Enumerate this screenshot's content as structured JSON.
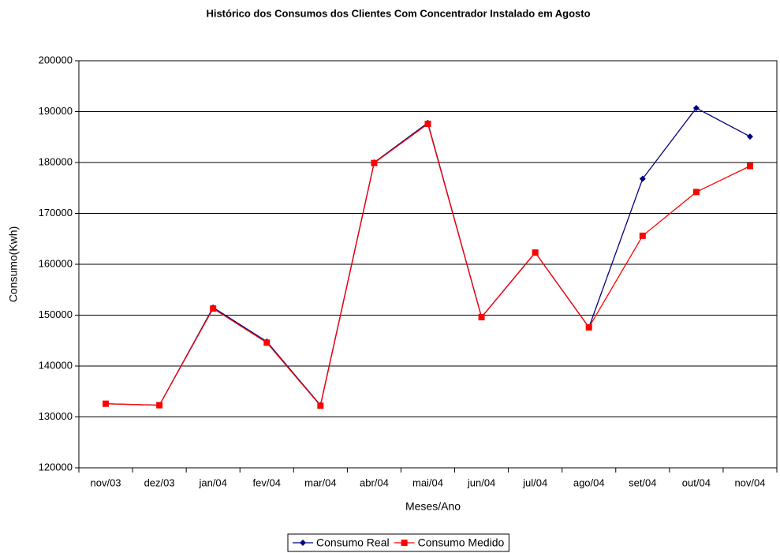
{
  "chart_data": {
    "type": "line",
    "title": "Histórico dos Consumos dos Clientes Com Concentrador Instalado em Agosto",
    "x_label": "Meses/Ano",
    "y_label": "Consumo(Kwh)",
    "categories": [
      "nov/03",
      "dez/03",
      "jan/04",
      "fev/04",
      "mar/04",
      "abr/04",
      "mai/04",
      "jun/04",
      "jul/04",
      "ago/04",
      "set/04",
      "out/04",
      "nov/04"
    ],
    "series": [
      {
        "name": "Consumo Real",
        "color": "#000080",
        "marker": "diamond",
        "values": [
          132600,
          132300,
          151500,
          144800,
          132300,
          180000,
          187800,
          149600,
          162300,
          147600,
          176800,
          190700,
          185100
        ]
      },
      {
        "name": "Consumo Medido",
        "color": "#ff0000",
        "marker": "square",
        "values": [
          132600,
          132300,
          151300,
          144600,
          132200,
          179900,
          187600,
          149600,
          162300,
          147600,
          165600,
          174200,
          179300
        ]
      }
    ],
    "ylim": [
      120000,
      200000
    ],
    "yticks": [
      120000,
      130000,
      140000,
      150000,
      160000,
      170000,
      180000,
      190000,
      200000
    ],
    "grid": true,
    "legend": "bottom"
  }
}
